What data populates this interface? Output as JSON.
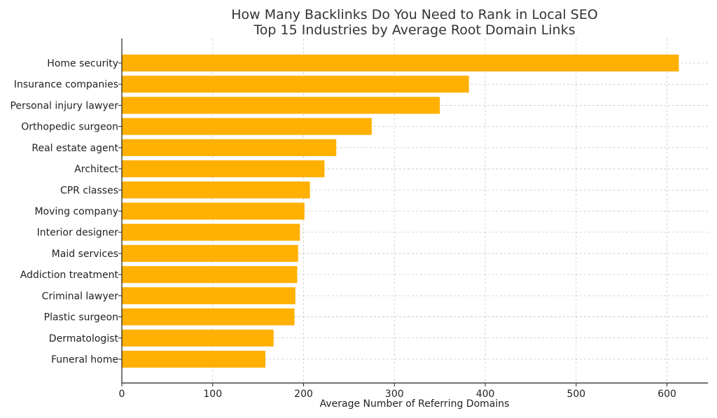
{
  "chart_data": {
    "type": "bar",
    "orientation": "horizontal",
    "title": "How Many Backlinks Do You Need to Rank in Local SEO",
    "subtitle": "Top 15 Industries by Average Root Domain Links",
    "xlabel": "Average Number of Referring Domains",
    "ylabel": "",
    "xlim": [
      0,
      645
    ],
    "xticks": [
      0,
      100,
      200,
      300,
      400,
      500,
      600
    ],
    "grid": true,
    "bar_color": "#FFB000",
    "categories": [
      "Home security",
      "Insurance companies",
      "Personal injury lawyer",
      "Orthopedic surgeon",
      "Real estate agent",
      "Architect",
      "CPR classes",
      "Moving company",
      "Interior designer",
      "Maid services",
      "Addiction treatment",
      "Criminal lawyer",
      "Plastic surgeon",
      "Dermatologist",
      "Funeral home"
    ],
    "values": [
      613,
      382,
      350,
      275,
      236,
      223,
      207,
      201,
      196,
      194,
      193,
      191,
      190,
      167,
      158
    ]
  }
}
